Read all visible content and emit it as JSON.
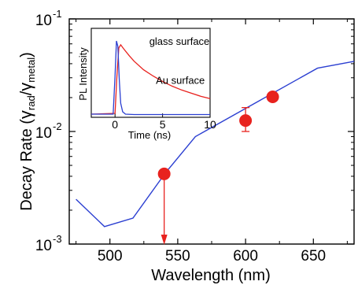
{
  "chart_data": {
    "type": "line",
    "title": "",
    "xlabel": "Wavelength (nm)",
    "ylabel": {
      "prefix": "Decay Rate  (",
      "gamma1": "γ",
      "sub1": "rad",
      "slash": "/",
      "gamma2": "γ",
      "sub2": "metal",
      "suffix": ")"
    },
    "xlim": [
      470,
      680
    ],
    "ylim": [
      0.001,
      0.1
    ],
    "yscale": "log",
    "x_ticks": [
      {
        "value": 500,
        "label": "500"
      },
      {
        "value": 550,
        "label": "550"
      },
      {
        "value": 600,
        "label": "600"
      },
      {
        "value": 650,
        "label": "650"
      }
    ],
    "y_ticks": [
      {
        "value": 0.001,
        "base": "10",
        "exp": "-3"
      },
      {
        "value": 0.01,
        "base": "10",
        "exp": "-2"
      },
      {
        "value": 0.1,
        "base": "10",
        "exp": "-1"
      }
    ],
    "series": [
      {
        "style": "line",
        "color": "#2b3fd1",
        "x": [
          475,
          496,
          517,
          541,
          563,
          610,
          653,
          680
        ],
        "y": [
          0.0025,
          0.00143,
          0.0017,
          0.0043,
          0.009,
          0.0187,
          0.0365,
          0.042
        ]
      },
      {
        "style": "markers",
        "color": "#e8221e",
        "x": [
          540,
          600,
          620
        ],
        "y": [
          0.0042,
          0.0125,
          0.0203
        ],
        "err_low": [
          null,
          0.01,
          null
        ],
        "err_high": [
          null,
          0.0163,
          null
        ]
      }
    ],
    "annotation_arrow": {
      "x": 540,
      "y_from": 0.0042,
      "color": "#e8221e"
    },
    "inset": {
      "type": "line",
      "xlabel": "Time (ns)",
      "ylabel": "PL Intensity",
      "xlim": [
        -2.5,
        10
      ],
      "ylim": [
        0,
        1
      ],
      "x_ticks": [
        {
          "value": 0,
          "label": "0"
        },
        {
          "value": 5,
          "label": "5"
        },
        {
          "value": 10,
          "label": "10"
        }
      ],
      "series": [
        {
          "name": "glass surface",
          "color": "#e8221e",
          "x": [
            -2.5,
            0,
            0.2,
            0.4,
            0.6,
            0.9,
            1.5,
            2,
            3,
            4,
            5,
            6,
            7,
            8,
            9,
            10
          ],
          "y": [
            0.01,
            0.02,
            0.5,
            0.86,
            0.9,
            0.85,
            0.76,
            0.69,
            0.58,
            0.5,
            0.43,
            0.37,
            0.32,
            0.28,
            0.24,
            0.21
          ]
        },
        {
          "name": "Au surface",
          "color": "#2b3fd1",
          "x": [
            -2.5,
            -0.2,
            0,
            0.15,
            0.3,
            0.45,
            0.6,
            0.8,
            1.1,
            2,
            10
          ],
          "y": [
            0.01,
            0.01,
            0.5,
            0.95,
            0.88,
            0.45,
            0.15,
            0.04,
            0.01,
            0.005,
            0.005
          ]
        }
      ],
      "annotations": [
        {
          "text": "glass surface",
          "x": 3.6,
          "y": 0.9
        },
        {
          "text": "Au surface",
          "x": 4.3,
          "y": 0.4
        }
      ]
    }
  }
}
